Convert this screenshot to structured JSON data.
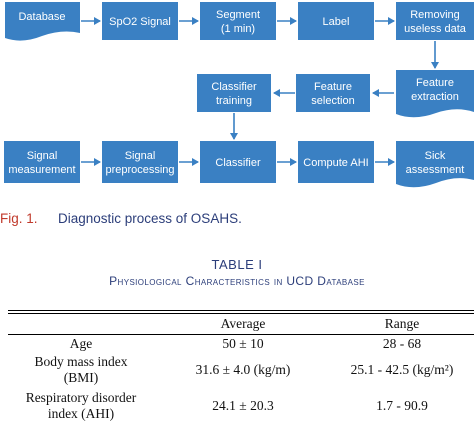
{
  "diagram": {
    "nodes": {
      "database": "Database",
      "spo2": "SpO2 Signal",
      "segment_line1": "Segment",
      "segment_line2": "(1 min)",
      "label": "Label",
      "removing_line1": "Removing",
      "removing_line2": "useless data",
      "feature_extraction_line1": "Feature",
      "feature_extraction_line2": "extraction",
      "feature_selection_line1": "Feature",
      "feature_selection_line2": "selection",
      "classifier_training_line1": "Classifier",
      "classifier_training_line2": "training",
      "signal_measurement_line1": "Signal",
      "signal_measurement_line2": "measurement",
      "signal_preprocessing_line1": "Signal",
      "signal_preprocessing_line2": "preprocessing",
      "classifier": "Classifier",
      "compute_ahi": "Compute AHI",
      "sick_line1": "Sick",
      "sick_line2": "assessment"
    },
    "colors": {
      "node": "#3a80c3",
      "arrow": "#3a80c3"
    }
  },
  "caption": {
    "label": "Fig. 1.",
    "text": "Diagnostic process of OSAHS."
  },
  "table": {
    "number": "TABLE I",
    "title": "Physiological Characteristics in UCD Database",
    "headers": [
      "",
      "Average",
      "Range"
    ],
    "rows": [
      {
        "name_line1": "Age",
        "name_line2": "",
        "average": "50 ± 10",
        "range": "28 - 68"
      },
      {
        "name_line1": "Body mass index",
        "name_line2": "(BMI)",
        "average": "31.6 ± 4.0  (kg/m)",
        "range": "25.1 - 42.5 (kg/m²)"
      },
      {
        "name_line1": "Respiratory disorder",
        "name_line2": "index (AHI)",
        "average": "24.1 ± 20.3",
        "range": "1.7 - 90.9"
      }
    ]
  }
}
